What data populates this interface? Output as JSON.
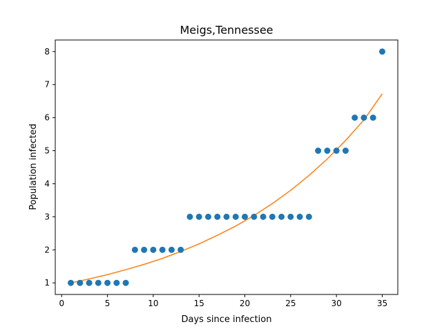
{
  "chart_data": {
    "type": "scatter",
    "title": "Meigs,Tennessee",
    "xlabel": "Days since infection",
    "ylabel": "Population infected",
    "xlim": [
      -0.7,
      36.7
    ],
    "ylim": [
      0.65,
      8.35
    ],
    "xticks": [
      0,
      5,
      10,
      15,
      20,
      25,
      30,
      35
    ],
    "yticks": [
      1,
      2,
      3,
      4,
      5,
      6,
      7,
      8
    ],
    "grid": false,
    "series": [
      {
        "kind": "scatter",
        "color": "#1f77b4",
        "x": [
          1,
          2,
          3,
          4,
          5,
          6,
          7,
          8,
          9,
          10,
          11,
          12,
          13,
          14,
          15,
          16,
          17,
          18,
          19,
          20,
          21,
          22,
          23,
          24,
          25,
          26,
          27,
          28,
          29,
          30,
          31,
          32,
          33,
          34,
          35
        ],
        "y": [
          1,
          1,
          1,
          1,
          1,
          1,
          1,
          2,
          2,
          2,
          2,
          2,
          2,
          3,
          3,
          3,
          3,
          3,
          3,
          3,
          3,
          3,
          3,
          3,
          3,
          3,
          3,
          5,
          5,
          5,
          5,
          6,
          6,
          6,
          8
        ]
      },
      {
        "kind": "line",
        "color": "#ff7f0e",
        "x": [
          1,
          3,
          5,
          7,
          9,
          11,
          13,
          15,
          17,
          19,
          21,
          23,
          25,
          27,
          29,
          31,
          33,
          35
        ],
        "y": [
          1.0,
          1.12,
          1.25,
          1.4,
          1.56,
          1.74,
          1.95,
          2.18,
          2.44,
          2.72,
          3.04,
          3.4,
          3.8,
          4.25,
          4.75,
          5.31,
          5.93,
          6.72
        ]
      }
    ]
  }
}
